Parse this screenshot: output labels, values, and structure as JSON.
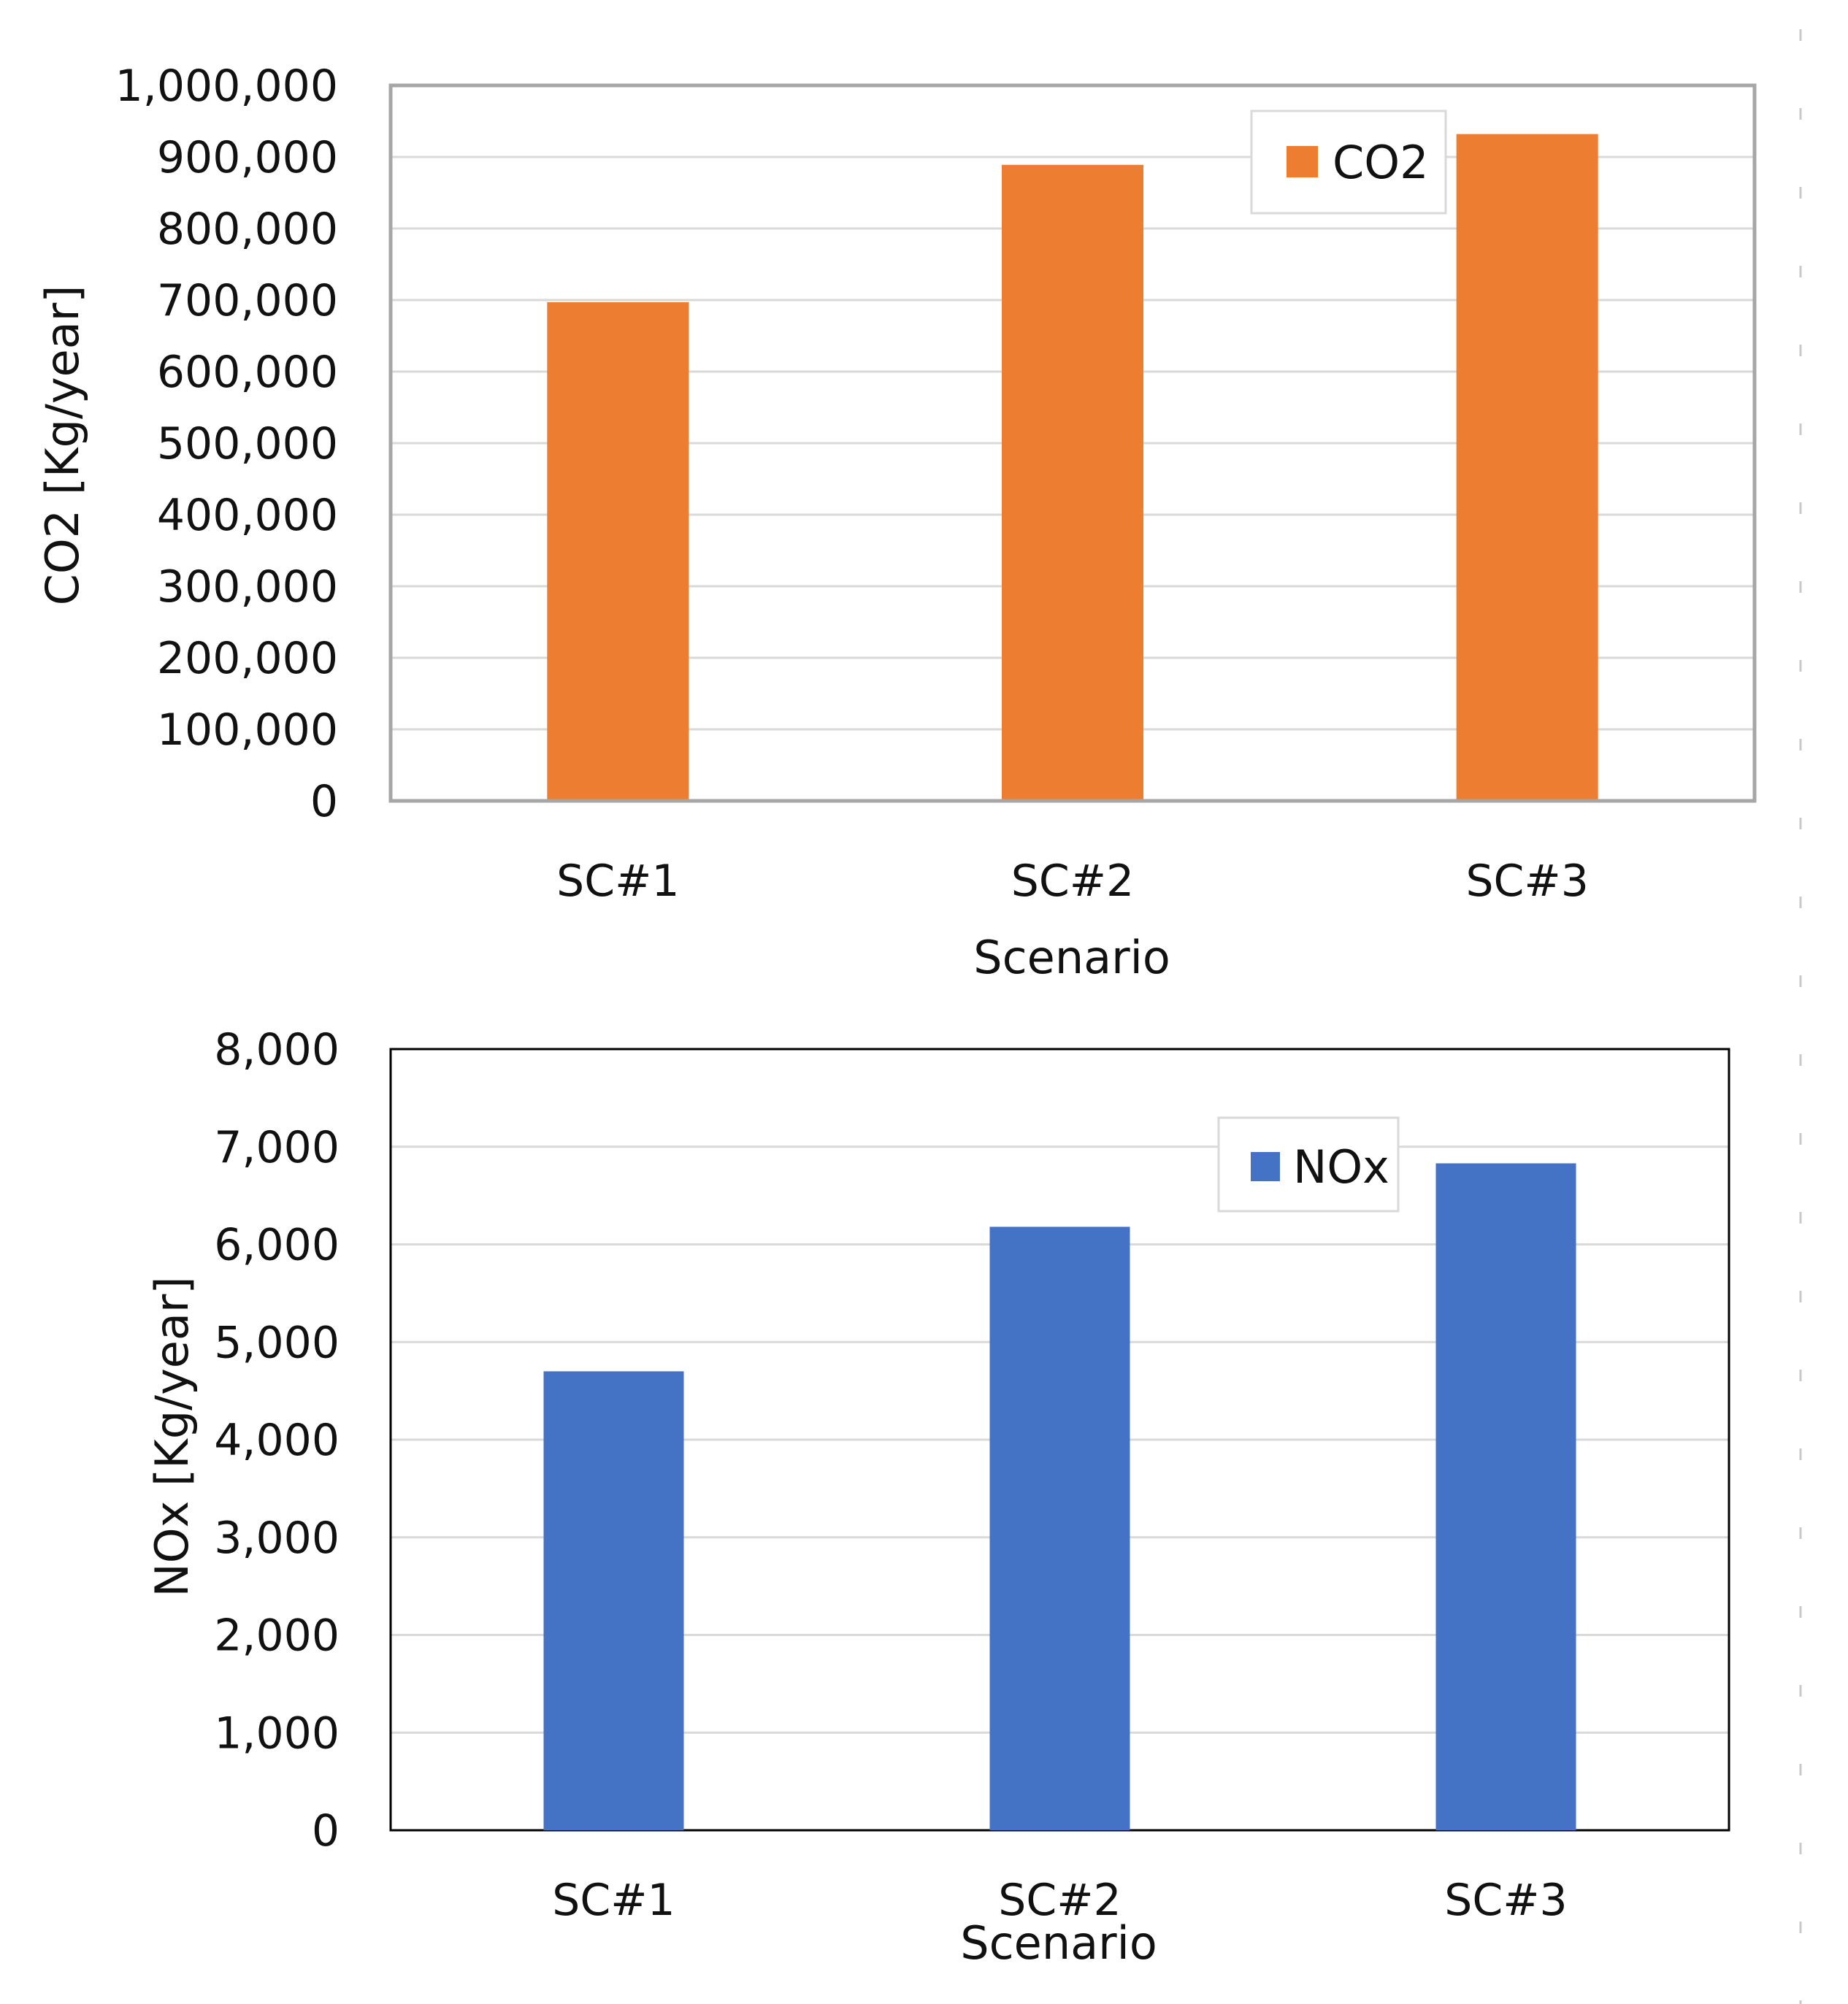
{
  "chart_data": [
    {
      "type": "bar",
      "categories": [
        "SC#1",
        "SC#2",
        "SC#3"
      ],
      "series": [
        {
          "name": "CO2",
          "values": [
            697000,
            889000,
            932000
          ],
          "color": "#ED7D31"
        }
      ],
      "ylim": [
        0,
        1000000
      ],
      "yticks": [
        0,
        100000,
        200000,
        300000,
        400000,
        500000,
        600000,
        700000,
        800000,
        900000,
        1000000
      ],
      "ytick_labels": [
        "0",
        "100,000",
        "200,000",
        "300,000",
        "400,000",
        "500,000",
        "600,000",
        "700,000",
        "800,000",
        "900,000",
        "1,000,000"
      ],
      "xlabel": "Scenario",
      "ylabel": "CO2 [Kg/year]",
      "legend": "top-right",
      "grid": true
    },
    {
      "type": "bar",
      "categories": [
        "SC#1",
        "SC#2",
        "SC#3"
      ],
      "series": [
        {
          "name": "NOx",
          "values": [
            4700,
            6180,
            6830
          ],
          "color": "#4472C4"
        }
      ],
      "ylim": [
        0,
        8000
      ],
      "yticks": [
        0,
        1000,
        2000,
        3000,
        4000,
        5000,
        6000,
        7000,
        8000
      ],
      "ytick_labels": [
        "0",
        "1,000",
        "2,000",
        "3,000",
        "4,000",
        "5,000",
        "6,000",
        "7,000",
        "8,000"
      ],
      "xlabel": "Scenario",
      "ylabel": "NOx [Kg/year]",
      "legend": "top-right",
      "grid": true
    }
  ]
}
